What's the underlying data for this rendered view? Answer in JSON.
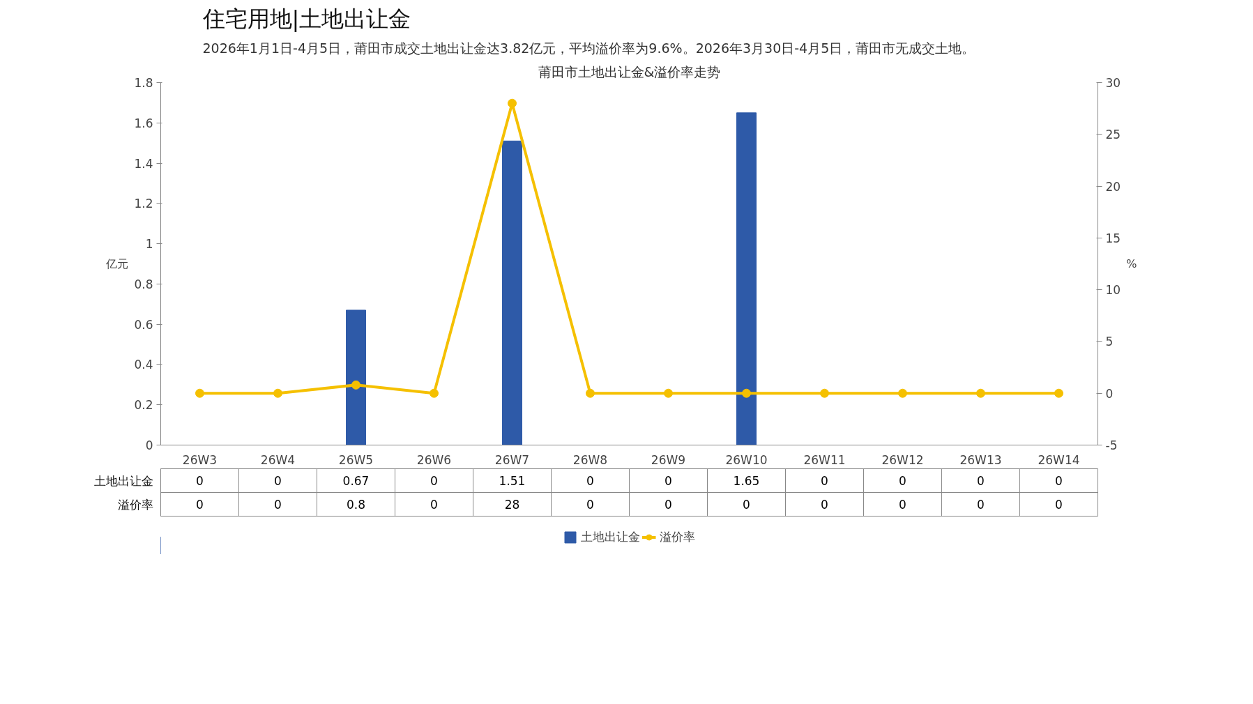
{
  "chart_data": {
    "type": "bar",
    "title": "住宅用地|土地出让金",
    "subtitle": "2026年1月1日-4月5日，莆田市成交土地出让金达3.82亿元，平均溢价率为9.6%。2026年3月30日-4月5日，莆田市无成交土地。",
    "annotations": [
      "莆田市土地出让金&溢价率走势"
    ],
    "categories": [
      "26W3",
      "26W4",
      "26W5",
      "26W6",
      "26W7",
      "26W8",
      "26W9",
      "26W10",
      "26W11",
      "26W12",
      "26W13",
      "26W14"
    ],
    "series": [
      {
        "name": "土地出让金",
        "color": "#2e5aa8",
        "values": [
          0,
          0,
          0.67,
          0,
          1.51,
          0,
          0,
          1.65,
          0,
          0,
          0,
          0
        ]
      },
      {
        "name": "溢价率",
        "type": "line",
        "axis": "y2",
        "color": "#f5c000",
        "marker": "circle",
        "values": [
          0,
          0,
          0.8,
          0,
          28,
          0,
          0,
          0,
          0,
          0,
          0,
          0
        ]
      }
    ],
    "ylabel": "亿元",
    "y2label": "%",
    "ylim": [
      0,
      1.8
    ],
    "yticks": [
      0,
      0.2,
      0.4,
      0.6,
      0.8,
      1,
      1.2,
      1.4,
      1.6,
      1.8
    ],
    "y2lim": [
      -5,
      30
    ],
    "y2ticks": [
      -5,
      0,
      5,
      10,
      15,
      20,
      25,
      30
    ],
    "data_labels": true,
    "grid": false,
    "legend": "bottom"
  }
}
